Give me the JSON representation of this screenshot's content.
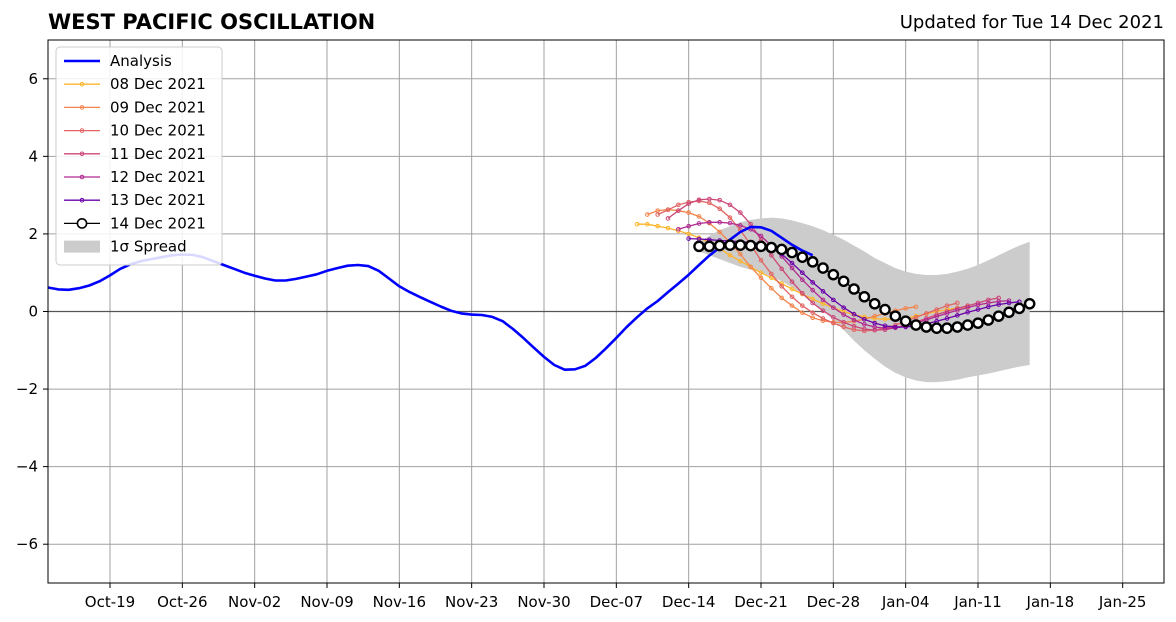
{
  "header": {
    "title": "WEST PACIFIC OSCILLATION",
    "updated": "Updated for Tue 14 Dec 2021"
  },
  "chart_data": {
    "type": "line",
    "title": "WEST PACIFIC OSCILLATION",
    "subtitle": "Updated for Tue 14 Dec 2021",
    "xlabel": "",
    "ylabel": "",
    "x_axis_type": "date",
    "xlim": [
      "2021-10-13",
      "2022-01-29"
    ],
    "ylim": [
      -7,
      7
    ],
    "grid": true,
    "legend_position": "top-left",
    "x_ticks": [
      "Oct-19",
      "Oct-26",
      "Nov-02",
      "Nov-09",
      "Nov-16",
      "Nov-23",
      "Nov-30",
      "Dec-07",
      "Dec-14",
      "Dec-21",
      "Dec-28",
      "Jan-04",
      "Jan-11",
      "Jan-18",
      "Jan-25"
    ],
    "x_tick_dates": [
      "2021-10-19",
      "2021-10-26",
      "2021-11-02",
      "2021-11-09",
      "2021-11-16",
      "2021-11-23",
      "2021-11-30",
      "2021-12-07",
      "2021-12-14",
      "2021-12-21",
      "2021-12-28",
      "2022-01-04",
      "2022-01-11",
      "2022-01-18",
      "2022-01-25"
    ],
    "y_ticks": [
      -6,
      -4,
      -2,
      0,
      2,
      4,
      6
    ],
    "y_tick_labels": [
      "−6",
      "−4",
      "−2",
      "0",
      "2",
      "4",
      "6"
    ],
    "analysis": {
      "name": "Analysis",
      "color": "#0000ff",
      "start": "2021-10-13",
      "values": [
        0.62,
        0.57,
        0.56,
        0.6,
        0.67,
        0.78,
        0.93,
        1.1,
        1.22,
        1.3,
        1.35,
        1.4,
        1.45,
        1.47,
        1.46,
        1.4,
        1.3,
        1.2,
        1.1,
        1.0,
        0.92,
        0.85,
        0.8,
        0.8,
        0.84,
        0.9,
        0.96,
        1.05,
        1.12,
        1.18,
        1.2,
        1.17,
        1.05,
        0.85,
        0.65,
        0.5,
        0.37,
        0.25,
        0.13,
        0.02,
        -0.05,
        -0.08,
        -0.09,
        -0.14,
        -0.25,
        -0.45,
        -0.68,
        -0.93,
        -1.17,
        -1.38,
        -1.5,
        -1.49,
        -1.4,
        -1.2,
        -0.95,
        -0.68,
        -0.4,
        -0.15,
        0.08,
        0.27,
        0.5,
        0.72,
        0.95,
        1.2,
        1.44,
        1.65,
        1.85,
        2.05,
        2.18,
        2.17,
        2.08,
        1.9,
        1.72,
        1.57,
        1.45
      ]
    },
    "forecasts": [
      {
        "name": "08 Dec 2021",
        "color": "#feb52b",
        "start": "2021-12-09",
        "values": [
          2.25,
          2.25,
          2.2,
          2.15,
          2.08,
          2.0,
          1.9,
          1.78,
          1.62,
          1.45,
          1.3,
          1.15,
          1.0,
          0.87,
          0.72,
          0.58,
          0.45,
          0.32,
          0.2,
          0.1,
          0.0,
          -0.08,
          -0.14,
          -0.18,
          -0.2,
          -0.2,
          -0.17,
          -0.12,
          -0.06,
          0.0,
          0.05,
          0.09,
          0.12
        ]
      },
      {
        "name": "09 Dec 2021",
        "color": "#f2844b",
        "start": "2021-12-10",
        "values": [
          2.5,
          2.6,
          2.63,
          2.6,
          2.55,
          2.45,
          2.28,
          2.05,
          1.78,
          1.48,
          1.15,
          0.87,
          0.6,
          0.35,
          0.15,
          -0.03,
          -0.16,
          -0.24,
          -0.28,
          -0.28,
          -0.25,
          -0.2,
          -0.12,
          -0.05,
          0.02,
          0.08,
          0.12
        ]
      },
      {
        "name": "10 Dec 2021",
        "color": "#e16462",
        "start": "2021-12-11",
        "values": [
          2.5,
          2.62,
          2.75,
          2.82,
          2.85,
          2.8,
          2.65,
          2.42,
          2.1,
          1.72,
          1.32,
          0.97,
          0.65,
          0.38,
          0.15,
          -0.03,
          -0.18,
          -0.3,
          -0.4,
          -0.47,
          -0.5,
          -0.48,
          -0.43,
          -0.35,
          -0.25,
          -0.15,
          -0.05,
          0.05,
          0.15,
          0.22
        ]
      },
      {
        "name": "11 Dec 2021",
        "color": "#cc4778",
        "start": "2021-12-12",
        "values": [
          2.4,
          2.6,
          2.78,
          2.88,
          2.9,
          2.87,
          2.75,
          2.55,
          2.25,
          1.85,
          1.45,
          1.1,
          0.77,
          0.47,
          0.22,
          0.02,
          -0.15,
          -0.28,
          -0.38,
          -0.45,
          -0.48,
          -0.47,
          -0.42,
          -0.35,
          -0.27,
          -0.18,
          -0.08,
          0.0,
          0.08,
          0.15,
          0.22,
          0.3,
          0.35
        ]
      },
      {
        "name": "12 Dec 2021",
        "color": "#b12a90",
        "start": "2021-12-13",
        "values": [
          2.12,
          2.2,
          2.27,
          2.3,
          2.3,
          2.28,
          2.22,
          2.12,
          1.95,
          1.7,
          1.42,
          1.12,
          0.82,
          0.55,
          0.3,
          0.1,
          -0.08,
          -0.22,
          -0.33,
          -0.4,
          -0.43,
          -0.42,
          -0.38,
          -0.3,
          -0.22,
          -0.13,
          -0.05,
          0.03,
          0.1,
          0.17,
          0.22,
          0.26,
          0.28
        ]
      },
      {
        "name": "13 Dec 2021",
        "color": "#6a00a8",
        "start": "2021-12-14",
        "values": [
          1.88,
          1.87,
          1.85,
          1.83,
          1.82,
          1.8,
          1.78,
          1.75,
          1.65,
          1.48,
          1.25,
          1.0,
          0.75,
          0.52,
          0.3,
          0.1,
          -0.07,
          -0.2,
          -0.3,
          -0.37,
          -0.4,
          -0.4,
          -0.37,
          -0.32,
          -0.25,
          -0.18,
          -0.1,
          -0.02,
          0.05,
          0.12,
          0.18,
          0.22,
          0.25
        ]
      },
      {
        "name": "14 Dec 2021",
        "color": "#000000",
        "start": "2021-12-15",
        "values": [
          1.68,
          1.68,
          1.7,
          1.71,
          1.71,
          1.7,
          1.68,
          1.65,
          1.6,
          1.52,
          1.4,
          1.28,
          1.12,
          0.95,
          0.78,
          0.58,
          0.38,
          0.2,
          0.05,
          -0.12,
          -0.25,
          -0.35,
          -0.4,
          -0.43,
          -0.43,
          -0.4,
          -0.35,
          -0.3,
          -0.22,
          -0.12,
          -0.02,
          0.08,
          0.2
        ]
      }
    ],
    "spread": {
      "name": "1σ Spread",
      "color": "#cccccc",
      "start": "2021-12-15",
      "upper": [
        1.8,
        1.95,
        2.1,
        2.2,
        2.3,
        2.36,
        2.4,
        2.42,
        2.4,
        2.35,
        2.28,
        2.2,
        2.1,
        1.98,
        1.85,
        1.7,
        1.55,
        1.38,
        1.25,
        1.12,
        1.03,
        0.97,
        0.94,
        0.94,
        0.97,
        1.03,
        1.1,
        1.2,
        1.32,
        1.45,
        1.58,
        1.7,
        1.8
      ],
      "lower": [
        1.55,
        1.45,
        1.35,
        1.25,
        1.15,
        1.08,
        1.0,
        0.9,
        0.78,
        0.62,
        0.45,
        0.25,
        0.02,
        -0.22,
        -0.48,
        -0.75,
        -1.0,
        -1.22,
        -1.42,
        -1.58,
        -1.7,
        -1.78,
        -1.82,
        -1.82,
        -1.8,
        -1.76,
        -1.7,
        -1.65,
        -1.6,
        -1.54,
        -1.48,
        -1.42,
        -1.38
      ]
    },
    "legend": {
      "items": [
        "Analysis",
        "08 Dec 2021",
        "09 Dec 2021",
        "10 Dec 2021",
        "11 Dec 2021",
        "12 Dec 2021",
        "13 Dec 2021",
        "14 Dec 2021",
        "1σ Spread"
      ]
    }
  }
}
